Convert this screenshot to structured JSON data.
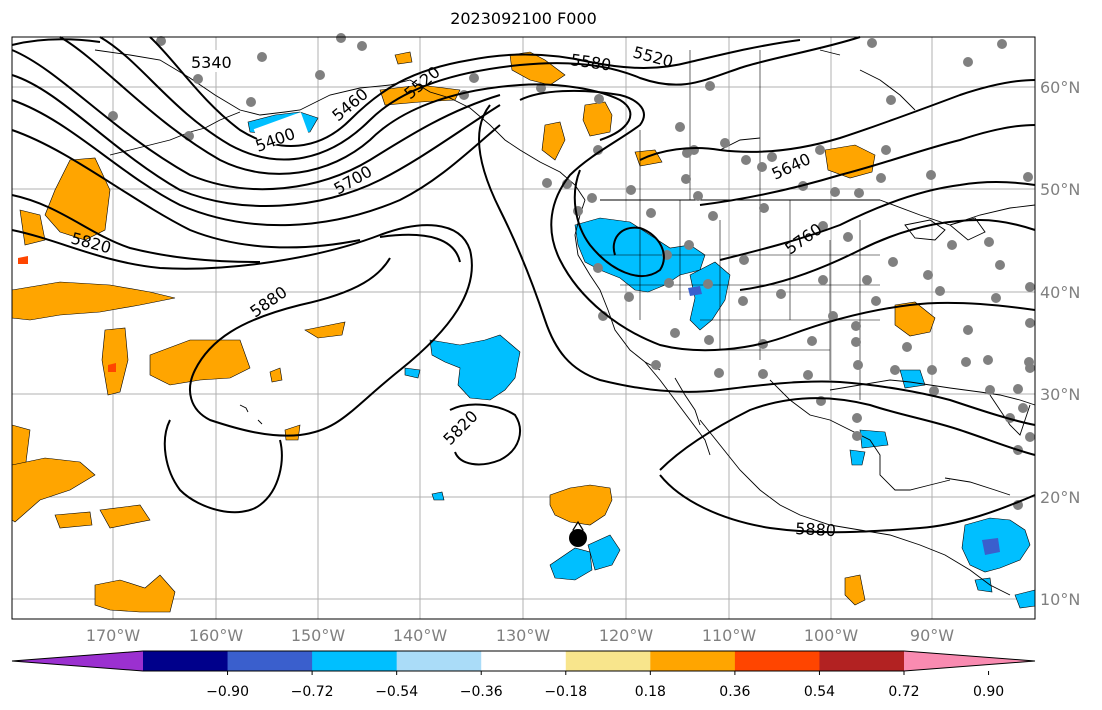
{
  "title": "2023092100 F000",
  "lat_labels": [
    "60°N",
    "50°N",
    "40°N",
    "30°N",
    "20°N",
    "10°N"
  ],
  "lon_labels": [
    "170°W",
    "160°W",
    "150°W",
    "140°W",
    "130°W",
    "120°W",
    "110°W",
    "100°W",
    "90°W"
  ],
  "contour_labels": [
    "5340",
    "5400",
    "5460",
    "5520",
    "5520",
    "5580",
    "5640",
    "5700",
    "5760",
    "5820",
    "5820",
    "5880",
    "5880"
  ],
  "colorbar": {
    "ticks": [
      "−0.90",
      "−0.72",
      "−0.54",
      "−0.36",
      "−0.18",
      "0.18",
      "0.36",
      "0.54",
      "0.72",
      "0.90"
    ],
    "colors": [
      "#9b30d0",
      "#00008b",
      "#3a5fcd",
      "#00bfff",
      "#aadcf8",
      "#ffffff",
      "#f8e58c",
      "#ffa500",
      "#ff4500",
      "#b22222",
      "#f98bb1"
    ]
  }
}
